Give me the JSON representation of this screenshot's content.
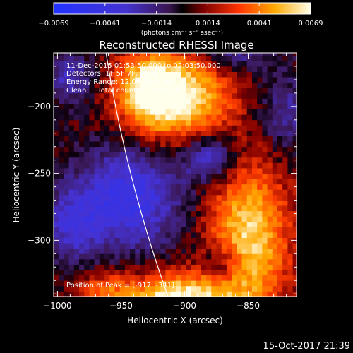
{
  "chart_data": {
    "type": "heatmap",
    "title": "Reconstructed RHESSI Image",
    "xlabel": "Heliocentric X (arcsec)",
    "ylabel": "Heliocentric Y (arcsec)",
    "xlim": [
      -1003,
      -967
    ],
    "ylim": [
      -342,
      -160
    ],
    "x_ticks": [
      {
        "value": -1000,
        "label": "−1000"
      },
      {
        "value": -950,
        "label": "−950"
      },
      {
        "value": -900,
        "label": "−900"
      },
      {
        "value": -850,
        "label": "−850"
      }
    ],
    "y_ticks": [
      {
        "value": -200,
        "label": "−200"
      },
      {
        "value": -250,
        "label": "−250"
      },
      {
        "value": -300,
        "label": "−300"
      }
    ],
    "colorbar": {
      "min": -0.0069,
      "max": 0.0069,
      "tick_labels": [
        "−0.0069",
        "−0.0041",
        "−0.0014",
        "0.0014",
        "0.0041",
        "0.0069"
      ],
      "unit_label": "(photons cm⁻² s⁻¹ asec⁻²)"
    },
    "annotations": [
      "11-Dec-2015 01:53:50.000 to 02:03:50.000",
      "Detectors: 1F 5F 7F, Att 0",
      "Energy Range: 12.0 - 25.0 keV",
      "Clean     Total counts: 2.72e+04"
    ],
    "peak_label": "Position of Peak = [-917, -341]",
    "sources": [
      {
        "x": -908,
        "y": -192,
        "sx": 28,
        "sy": 22,
        "amp": 0.0072
      },
      {
        "x": -930,
        "y": -185,
        "sx": 14,
        "sy": 16,
        "amp": 0.0035
      },
      {
        "x": -850,
        "y": -298,
        "sx": 22,
        "sy": 38,
        "amp": 0.0058
      },
      {
        "x": -905,
        "y": -345,
        "sx": 32,
        "sy": 14,
        "amp": 0.007
      },
      {
        "x": -965,
        "y": -338,
        "sx": 14,
        "sy": 10,
        "amp": 0.0025
      },
      {
        "x": -945,
        "y": -268,
        "sx": 30,
        "sy": 26,
        "amp": -0.005
      },
      {
        "x": -990,
        "y": -290,
        "sx": 16,
        "sy": 18,
        "amp": -0.003
      },
      {
        "x": -880,
        "y": -238,
        "sx": 14,
        "sy": 12,
        "amp": -0.004
      },
      {
        "x": -990,
        "y": -178,
        "sx": 12,
        "sy": 14,
        "amp": -0.0032
      },
      {
        "x": -860,
        "y": -160,
        "sx": 20,
        "sy": 10,
        "amp": -0.0025
      },
      {
        "x": -820,
        "y": -205,
        "sx": 14,
        "sy": 20,
        "amp": -0.0025
      },
      {
        "x": -870,
        "y": -318,
        "sx": 12,
        "sy": 12,
        "amp": -0.0028
      }
    ],
    "limb_arc": {
      "center_x": 0,
      "center_y": 0,
      "radius": 975,
      "from_y": -160,
      "to_y": -342
    },
    "grid": false
  },
  "footer": {
    "timestamp": "15-Oct-2017 21:39"
  }
}
